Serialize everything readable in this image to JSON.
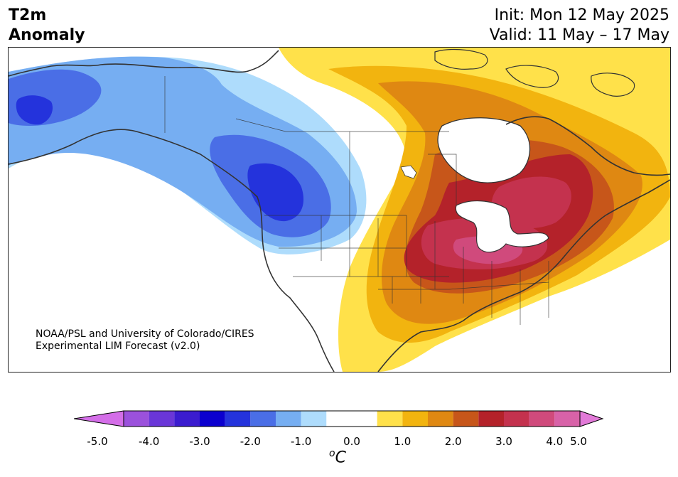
{
  "title": {
    "variable": "T2m",
    "kind": "Anomaly",
    "init": "Init: Mon 12 May 2025",
    "valid": "Valid: 11 May – 17 May"
  },
  "credit": {
    "line1": "NOAA/PSL and University of Colorado/CIRES",
    "line2": "Experimental LIM Forecast (v2.0)"
  },
  "colorbar": {
    "unit": "°C",
    "unit_base": "C",
    "unit_sup": "o",
    "ticks": [
      "-5.0",
      "-4.0",
      "-3.0",
      "-2.0",
      "-1.0",
      "0.0",
      "1.0",
      "2.0",
      "3.0",
      "4.0",
      "5.0"
    ],
    "levels": [
      -5.0,
      -4.5,
      -4.0,
      -3.5,
      -3.0,
      -2.5,
      -2.0,
      -1.5,
      -1.0,
      -0.5,
      0.5,
      1.0,
      1.5,
      2.0,
      2.5,
      3.0,
      3.5,
      4.0,
      4.5,
      5.0
    ],
    "colors": [
      "#d46ee8",
      "#9b51dc",
      "#6a36d8",
      "#3b1ccf",
      "#0b00cf",
      "#2433dc",
      "#4a6ee6",
      "#76aef2",
      "#aedcfc",
      "#ffffff",
      "#ffe14a",
      "#f2b40f",
      "#df8812",
      "#c7561a",
      "#b4222a",
      "#c4324e",
      "#d04a7c",
      "#d862a8",
      "#e27ad8"
    ],
    "under_color": "#d46ee8",
    "over_color": "#e27ad8"
  }
}
